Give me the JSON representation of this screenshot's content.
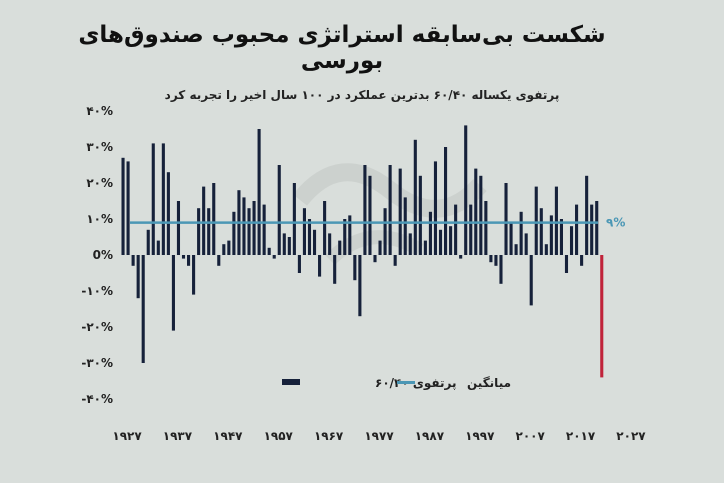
{
  "chart_data": {
    "type": "bar",
    "title": "شکست بی‌سابقه استراتژی محبوب صندوق‌های بورسی",
    "subtitle": "پرتفوی یکساله ۶۰/۴۰ بدترین عملکرد در ۱۰۰ سال اخیر را تجربه کرد",
    "ylim": [
      -40,
      40
    ],
    "y_ticks": [
      40,
      30,
      20,
      10,
      0,
      -10,
      -20,
      -30,
      -40
    ],
    "y_tick_labels": [
      "۴۰%",
      "۳۰%",
      "۲۰%",
      "۱۰%",
      "0%",
      "-۱۰%",
      "-۲۰%",
      "-۳۰%",
      "-۴۰%"
    ],
    "x_tick_labels": [
      "۱۹۲۷",
      "۱۹۳۷",
      "۱۹۴۷",
      "۱۹۵۷",
      "۱۹۶۷",
      "۱۹۷۷",
      "۱۹۸۷",
      "۱۹۹۷",
      "۲۰۰۷",
      "۲۰۱۷",
      "۲۰۲۷"
    ],
    "x_ticks": [
      1927,
      1937,
      1947,
      1957,
      1967,
      1977,
      1987,
      1997,
      2007,
      2017,
      2027
    ],
    "xlim": [
      1926,
      2028
    ],
    "average": {
      "value": 9,
      "label": "۹%",
      "color": "#4b97b5"
    },
    "highlight": {
      "year": 2022,
      "value": -34,
      "color": "#c0233a"
    },
    "bar_color": "#16213a",
    "legend": {
      "series_label": "پرتفوی ۶۰/۴۰",
      "average_label": "میانگین",
      "placement": "bottom"
    },
    "series": [
      {
        "name": "پرتفوی ۶۰/۴۰",
        "x": [
          1927,
          1928,
          1929,
          1930,
          1931,
          1932,
          1933,
          1934,
          1935,
          1936,
          1937,
          1938,
          1939,
          1940,
          1941,
          1942,
          1943,
          1944,
          1945,
          1946,
          1947,
          1948,
          1949,
          1950,
          1951,
          1952,
          1953,
          1954,
          1955,
          1956,
          1957,
          1958,
          1959,
          1960,
          1961,
          1962,
          1963,
          1964,
          1965,
          1966,
          1967,
          1968,
          1969,
          1970,
          1971,
          1972,
          1973,
          1974,
          1975,
          1976,
          1977,
          1978,
          1979,
          1980,
          1981,
          1982,
          1983,
          1984,
          1985,
          1986,
          1987,
          1988,
          1989,
          1990,
          1991,
          1992,
          1993,
          1994,
          1995,
          1996,
          1997,
          1998,
          1999,
          2000,
          2001,
          2002,
          2003,
          2004,
          2005,
          2006,
          2007,
          2008,
          2009,
          2010,
          2011,
          2012,
          2013,
          2014,
          2015,
          2016,
          2017,
          2018,
          2019,
          2020,
          2021,
          2022
        ],
        "values": [
          27,
          26,
          -3,
          -12,
          -30,
          7,
          31,
          4,
          31,
          23,
          -21,
          15,
          -1,
          -3,
          -11,
          13,
          19,
          13,
          20,
          -3,
          3,
          4,
          12,
          18,
          16,
          13,
          15,
          35,
          14,
          2,
          -1,
          25,
          6,
          5,
          20,
          -5,
          13,
          10,
          7,
          -6,
          15,
          6,
          -8,
          4,
          10,
          11,
          -7,
          -17,
          25,
          22,
          -2,
          4,
          13,
          25,
          -3,
          24,
          16,
          6,
          32,
          22,
          4,
          12,
          26,
          7,
          30,
          8,
          14,
          -1,
          36,
          14,
          24,
          22,
          15,
          -2,
          -3,
          -8,
          20,
          9,
          3,
          12,
          6,
          -14,
          19,
          13,
          3,
          11,
          19,
          10,
          -5,
          8,
          14,
          -3,
          22,
          14,
          15,
          -34
        ]
      }
    ]
  }
}
